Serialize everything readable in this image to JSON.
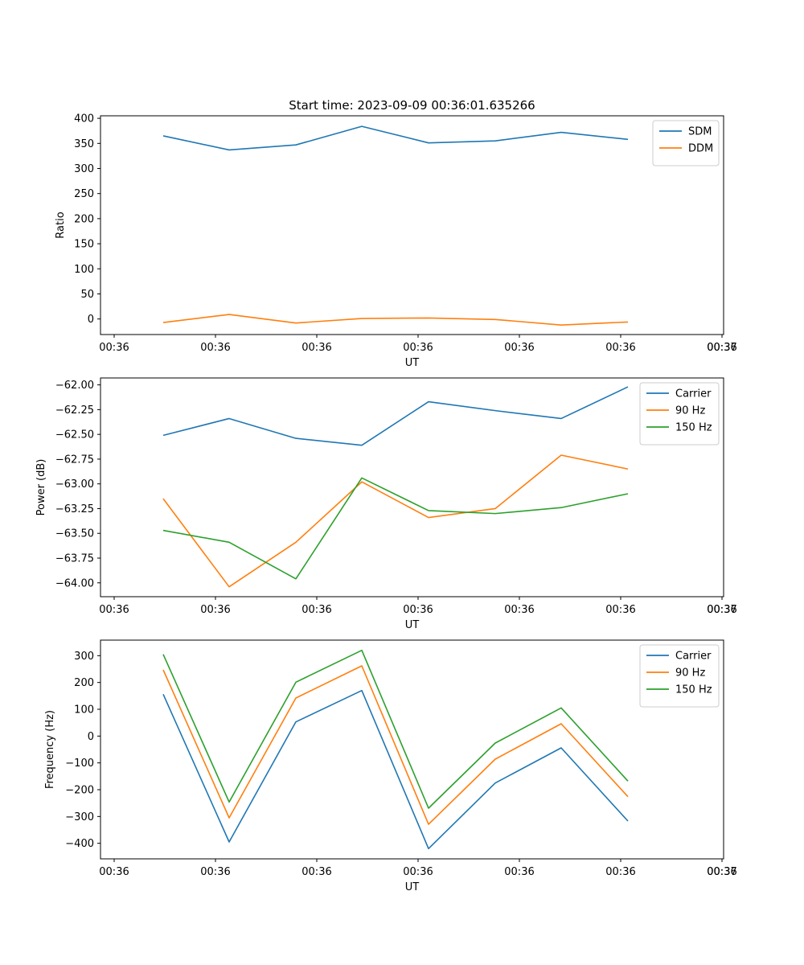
{
  "figure": {
    "title": "Start time: 2023-09-09 00:36:01.635266"
  },
  "chart_data": [
    {
      "type": "line",
      "title": "Start time: 2023-09-09 00:36:01.635266",
      "xlabel": "UT",
      "ylabel": "Ratio",
      "x_ticks": [
        "00:36",
        "00:36",
        "00:36",
        "00:36",
        "00:36",
        "00:36",
        "00:36",
        "00:37"
      ],
      "ylim": [
        -31,
        405
      ],
      "y_ticks": [
        0,
        50,
        100,
        150,
        200,
        250,
        300,
        350,
        400
      ],
      "legend_position": "top-right",
      "series": [
        {
          "name": "SDM",
          "color": "#1f77b4",
          "values": [
            365,
            337,
            347,
            384,
            351,
            355,
            372,
            358
          ]
        },
        {
          "name": "DDM",
          "color": "#ff7f0e",
          "values": [
            -7,
            9,
            -8,
            1,
            2,
            -1,
            -12,
            -6
          ]
        }
      ]
    },
    {
      "type": "line",
      "xlabel": "UT",
      "ylabel": "Power (dB)",
      "x_ticks": [
        "00:36",
        "00:36",
        "00:36",
        "00:36",
        "00:36",
        "00:36",
        "00:36",
        "00:37"
      ],
      "ylim": [
        -64.14,
        -61.93
      ],
      "y_ticks": [
        "-64.00",
        "-63.75",
        "-63.50",
        "-63.25",
        "-63.00",
        "-62.75",
        "-62.50",
        "-62.25",
        "-62.00"
      ],
      "y_tick_values": [
        -64.0,
        -63.75,
        -63.5,
        -63.25,
        -63.0,
        -62.75,
        -62.5,
        -62.25,
        -62.0
      ],
      "legend_position": "top-right",
      "series": [
        {
          "name": "Carrier",
          "color": "#1f77b4",
          "values": [
            -62.51,
            -62.34,
            -62.54,
            -62.61,
            -62.17,
            -62.26,
            -62.34,
            -62.02
          ]
        },
        {
          "name": "90 Hz",
          "color": "#ff7f0e",
          "values": [
            -63.15,
            -64.04,
            -63.59,
            -62.98,
            -63.34,
            -63.25,
            -62.71,
            -62.85
          ]
        },
        {
          "name": "150 Hz",
          "color": "#2ca02c",
          "values": [
            -63.47,
            -63.59,
            -63.96,
            -62.94,
            -63.27,
            -63.3,
            -63.24,
            -63.1
          ]
        }
      ]
    },
    {
      "type": "line",
      "xlabel": "UT",
      "ylabel": "Frequency (Hz)",
      "x_ticks": [
        "00:36",
        "00:36",
        "00:36",
        "00:36",
        "00:36",
        "00:36",
        "00:36",
        "00:37"
      ],
      "ylim": [
        -458,
        358
      ],
      "y_ticks": [
        -400,
        -300,
        -200,
        -100,
        0,
        100,
        200,
        300
      ],
      "legend_position": "top-right",
      "series": [
        {
          "name": "Carrier",
          "color": "#1f77b4",
          "values": [
            156,
            -395,
            53,
            170,
            -420,
            -175,
            -44,
            -317
          ]
        },
        {
          "name": "90 Hz",
          "color": "#ff7f0e",
          "values": [
            247,
            -305,
            142,
            262,
            -329,
            -86,
            46,
            -226
          ]
        },
        {
          "name": "150 Hz",
          "color": "#2ca02c",
          "values": [
            305,
            -246,
            201,
            320,
            -269,
            -26,
            105,
            -168
          ]
        }
      ]
    }
  ]
}
